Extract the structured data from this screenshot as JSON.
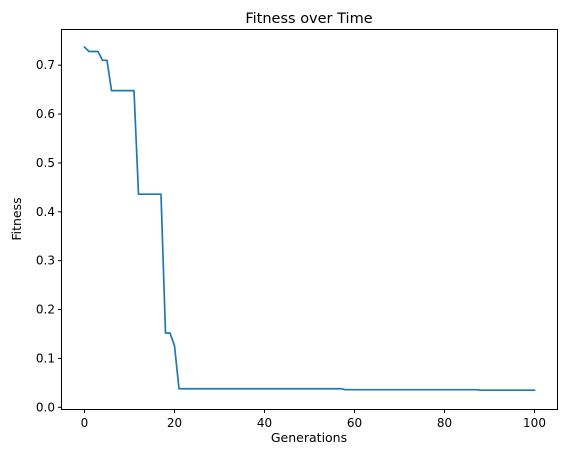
{
  "chart_data": {
    "type": "line",
    "title": "Fitness over Time",
    "xlabel": "Generations",
    "ylabel": "Fitness",
    "xlim": [
      -5,
      105
    ],
    "ylim": [
      -0.0035,
      0.772
    ],
    "xticks": [
      0,
      20,
      40,
      60,
      80,
      100
    ],
    "yticks": [
      0.0,
      0.1,
      0.2,
      0.3,
      0.4,
      0.5,
      0.6,
      0.7
    ],
    "ytick_labels": [
      "0.0",
      "0.1",
      "0.2",
      "0.3",
      "0.4",
      "0.5",
      "0.6",
      "0.7"
    ],
    "xtick_labels": [
      "0",
      "20",
      "40",
      "60",
      "80",
      "100"
    ],
    "grid": false,
    "series": [
      {
        "color": "#1f77b4",
        "x": [
          0,
          1,
          2,
          3,
          4,
          5,
          6,
          7,
          8,
          9,
          10,
          11,
          12,
          13,
          14,
          15,
          16,
          17,
          18,
          19,
          20,
          21,
          22,
          30,
          40,
          50,
          56,
          57,
          58,
          60,
          70,
          80,
          87,
          88,
          89,
          90,
          100
        ],
        "y": [
          0.737,
          0.728,
          0.728,
          0.728,
          0.71,
          0.71,
          0.648,
          0.648,
          0.648,
          0.648,
          0.648,
          0.648,
          0.436,
          0.436,
          0.436,
          0.436,
          0.436,
          0.436,
          0.152,
          0.152,
          0.126,
          0.038,
          0.038,
          0.038,
          0.038,
          0.038,
          0.038,
          0.038,
          0.036,
          0.036,
          0.036,
          0.036,
          0.036,
          0.035,
          0.035,
          0.035,
          0.035
        ]
      }
    ]
  }
}
